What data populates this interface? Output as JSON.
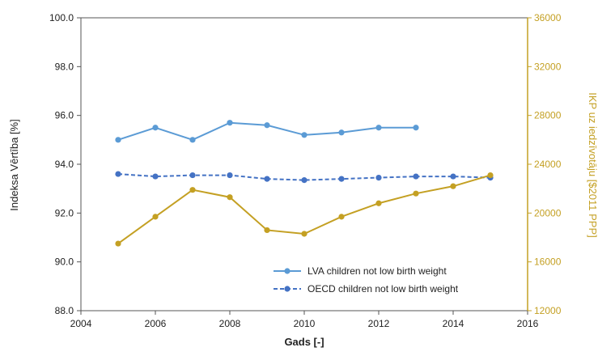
{
  "chart_data": {
    "type": "line",
    "xlabel": "Gads [-]",
    "ylabel": "Indeksa Vērtība [%]",
    "y2label": "IKP uz iedzīvotāju [$2011 PPP]",
    "xlim": [
      2004,
      2016
    ],
    "ylim": [
      88,
      100
    ],
    "y2lim": [
      12000,
      36000
    ],
    "x_ticks": [
      2004,
      2006,
      2008,
      2010,
      2012,
      2014,
      2016
    ],
    "y_ticks": [
      88,
      90,
      92,
      94,
      96,
      98,
      100
    ],
    "y2_ticks": [
      12000,
      16000,
      20000,
      24000,
      28000,
      32000,
      36000
    ],
    "y_tick_labels": [
      "88.0",
      "90.0",
      "92.0",
      "94.0",
      "96.0",
      "98.0",
      "100.0"
    ],
    "y2_tick_labels": [
      "12000",
      "16000",
      "20000",
      "24000",
      "28000",
      "32000",
      "36000"
    ],
    "x_tick_labels": [
      "2004",
      "2006",
      "2008",
      "2010",
      "2012",
      "2014",
      "2016"
    ],
    "grid": false,
    "legend_position": "bottom-right",
    "series": [
      {
        "name": "LVA children not low birth weight",
        "axis": "left",
        "color": "#5b9bd5",
        "dash": "solid",
        "x": [
          2005,
          2006,
          2007,
          2008,
          2009,
          2010,
          2011,
          2012,
          2013
        ],
        "y": [
          95.0,
          95.5,
          95.0,
          95.7,
          95.6,
          95.2,
          95.3,
          95.5,
          95.5
        ]
      },
      {
        "name": "OECD children not low birth weight",
        "axis": "left",
        "color": "#4472c4",
        "dash": "dashed",
        "x": [
          2005,
          2006,
          2007,
          2008,
          2009,
          2010,
          2011,
          2012,
          2013,
          2014,
          2015
        ],
        "y": [
          93.6,
          93.5,
          93.55,
          93.55,
          93.4,
          93.35,
          93.4,
          93.45,
          93.5,
          93.5,
          93.45
        ]
      },
      {
        "name": "",
        "axis": "right",
        "color": "#c4a023",
        "dash": "solid",
        "x": [
          2005,
          2006,
          2007,
          2008,
          2009,
          2010,
          2011,
          2012,
          2013,
          2014,
          2015
        ],
        "y": [
          17500,
          19700,
          21900,
          21300,
          18600,
          18300,
          19700,
          20800,
          21600,
          22200,
          23100
        ]
      }
    ]
  }
}
